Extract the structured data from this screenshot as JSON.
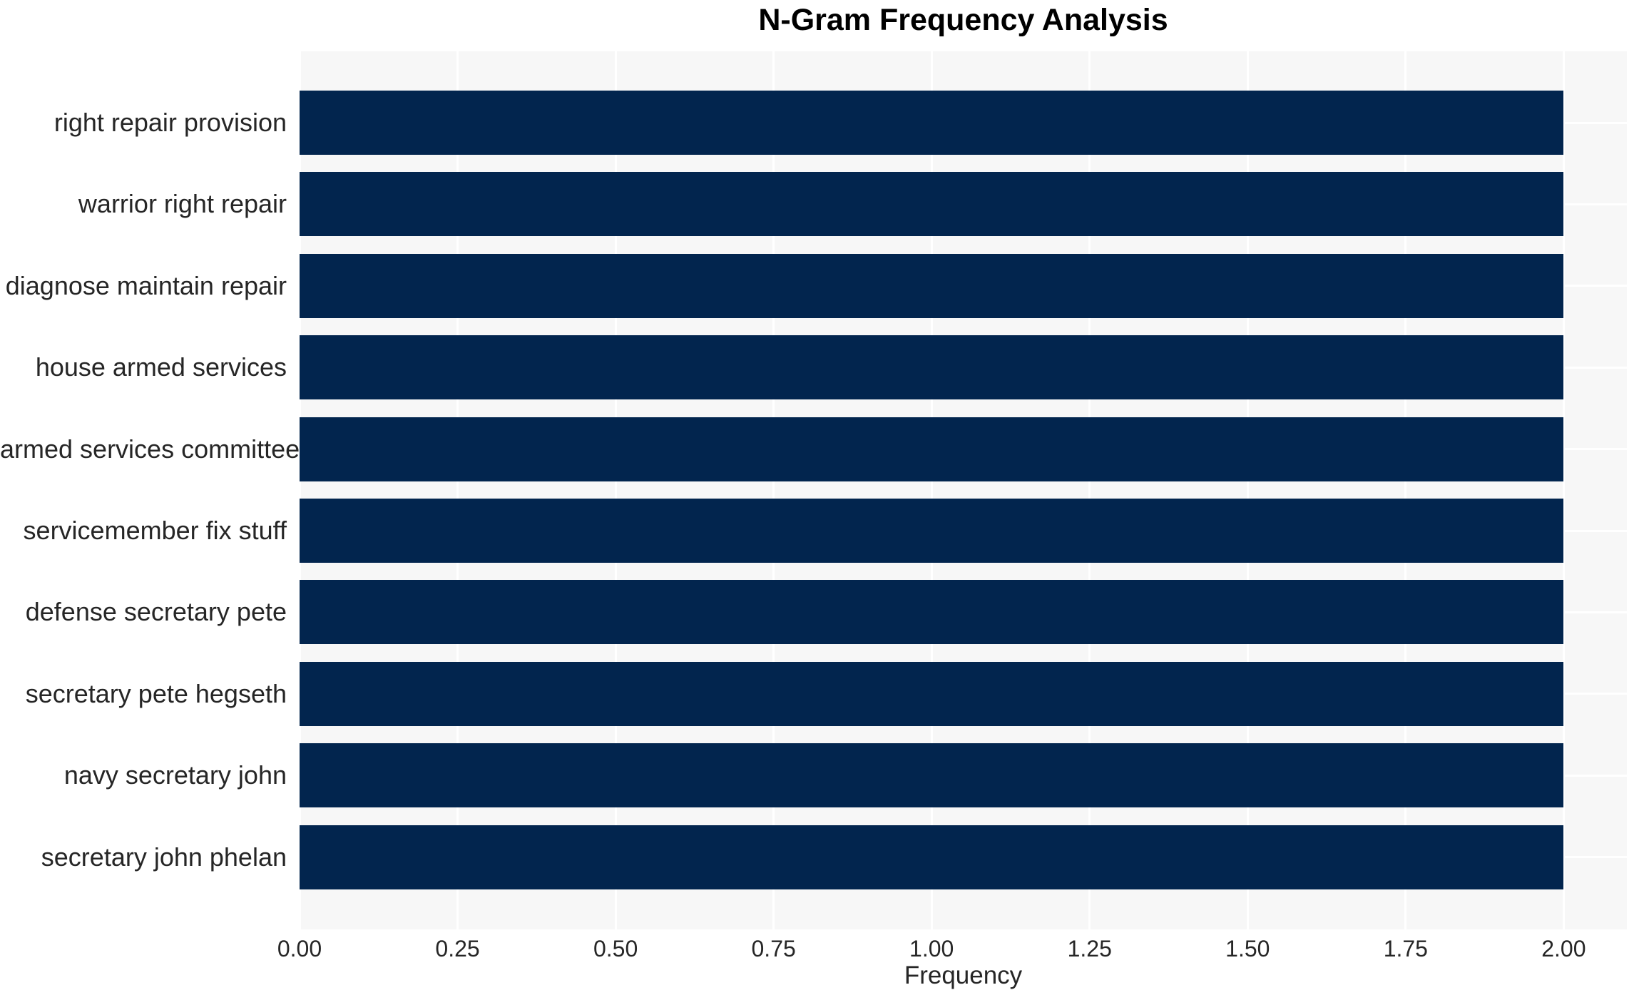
{
  "chart_data": {
    "type": "bar",
    "orientation": "horizontal",
    "title": "N-Gram Frequency Analysis",
    "xlabel": "Frequency",
    "ylabel": "",
    "categories": [
      "right repair provision",
      "warrior right repair",
      "diagnose maintain repair",
      "house armed services",
      "armed services committee",
      "servicemember fix stuff",
      "defense secretary pete",
      "secretary pete hegseth",
      "navy secretary john",
      "secretary john phelan"
    ],
    "values": [
      2.0,
      2.0,
      2.0,
      2.0,
      2.0,
      2.0,
      2.0,
      2.0,
      2.0,
      2.0
    ],
    "xlim": [
      0,
      2.1
    ],
    "xtick_labels": [
      "0.00",
      "0.25",
      "0.50",
      "0.75",
      "1.00",
      "1.25",
      "1.50",
      "1.75",
      "2.00"
    ],
    "xtick_values": [
      0,
      0.25,
      0.5,
      0.75,
      1.0,
      1.25,
      1.5,
      1.75,
      2.0
    ],
    "grid": true,
    "legend": "none",
    "colors": {
      "bar": "#02254e",
      "plot_background": "#f7f7f7",
      "gridline": "#ffffff",
      "tick_text": "#262626",
      "title_text": "#000000"
    }
  }
}
